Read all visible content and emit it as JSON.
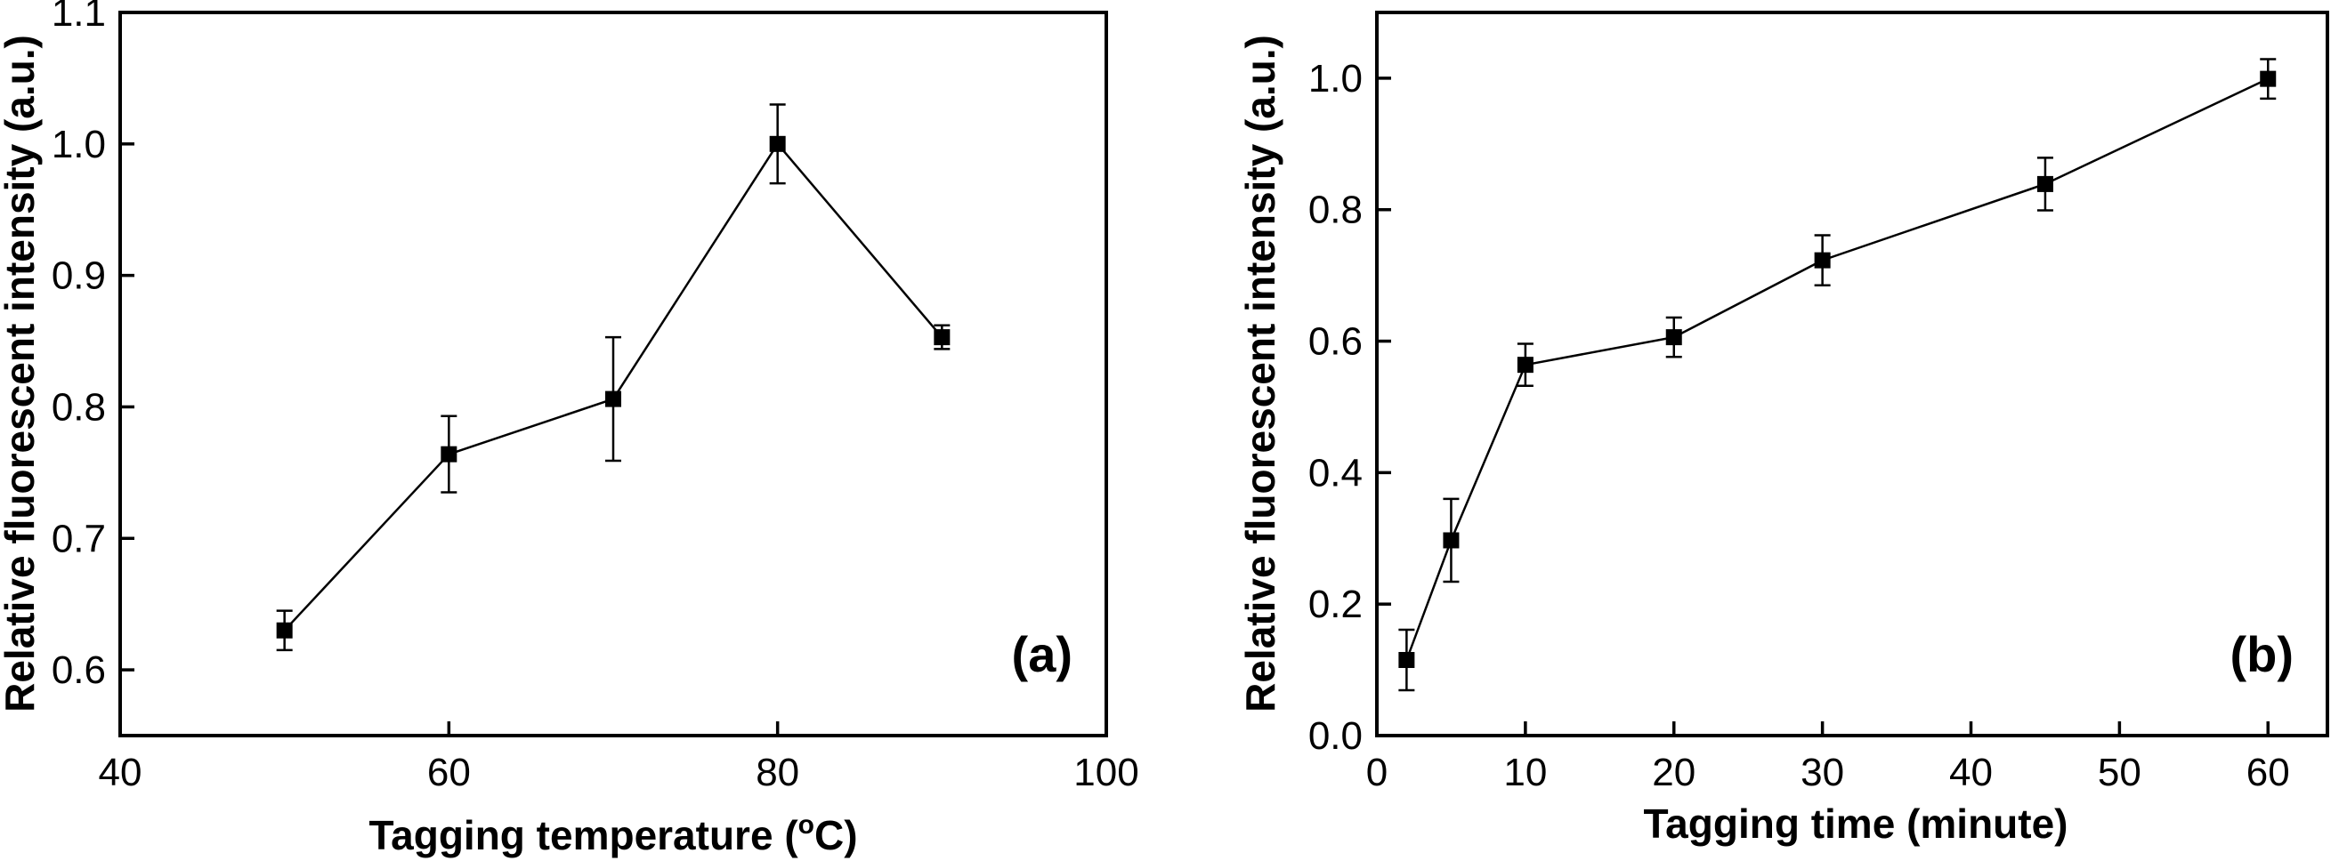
{
  "chart_data": [
    {
      "type": "line",
      "panel_label": "(a)",
      "xlabel": "Tagging temperature (",
      "xlabel_sup": "o",
      "xlabel_end": "C)",
      "ylabel": "Relative fluorescent intensity (a.u.)",
      "xlim": [
        40,
        100
      ],
      "ylim": [
        0.55,
        1.1
      ],
      "xticks": [
        40,
        60,
        80,
        100
      ],
      "yticks": [
        0.6,
        0.7,
        0.8,
        0.9,
        1.0,
        1.1
      ],
      "xtick_labels": [
        "40",
        "60",
        "80",
        "100"
      ],
      "ytick_labels": [
        "0.6",
        "0.7",
        "0.8",
        "0.9",
        "1.0",
        "1.1"
      ],
      "grid": false,
      "marker": "square",
      "x": [
        50,
        60,
        70,
        80,
        90
      ],
      "y": [
        0.63,
        0.764,
        0.806,
        1.0,
        0.853
      ],
      "yerr": [
        0.015,
        0.029,
        0.047,
        0.03,
        0.009
      ]
    },
    {
      "type": "line",
      "panel_label": "(b)",
      "xlabel": "Tagging time (minute)",
      "ylabel": "Relative fluorescent intensity (a.u.)",
      "xlim": [
        0,
        64
      ],
      "ylim": [
        0.0,
        1.1
      ],
      "xticks": [
        0,
        10,
        20,
        30,
        40,
        50,
        60
      ],
      "yticks": [
        0.0,
        0.2,
        0.4,
        0.6,
        0.8,
        1.0
      ],
      "xtick_labels": [
        "0",
        "10",
        "20",
        "30",
        "40",
        "50",
        "60"
      ],
      "ytick_labels": [
        "0.0",
        "0.2",
        "0.4",
        "0.6",
        "0.8",
        "1.0"
      ],
      "grid": false,
      "marker": "square",
      "x": [
        2,
        5,
        10,
        20,
        30,
        45,
        60
      ],
      "y": [
        0.115,
        0.297,
        0.564,
        0.606,
        0.723,
        0.839,
        0.999
      ],
      "yerr": [
        0.046,
        0.063,
        0.032,
        0.03,
        0.038,
        0.04,
        0.03
      ]
    }
  ]
}
